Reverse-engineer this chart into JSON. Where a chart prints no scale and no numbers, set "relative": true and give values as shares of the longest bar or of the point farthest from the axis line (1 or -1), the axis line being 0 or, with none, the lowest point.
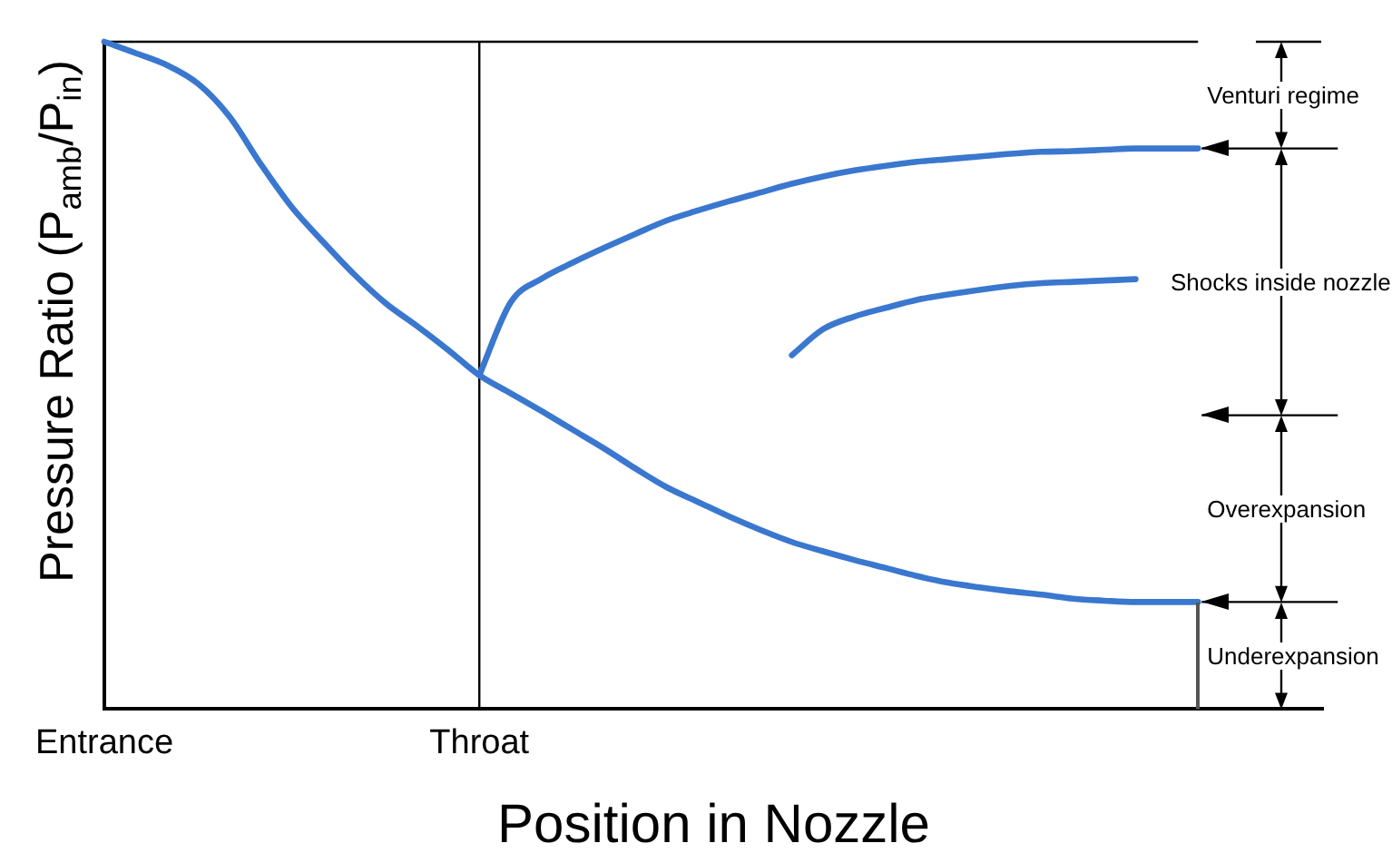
{
  "chart_data": {
    "type": "line",
    "xlabel": "Position in Nozzle",
    "ylabel": "Pressure Ratio (P$_{amb}$/P$_{in}$)",
    "relative": true,
    "tick_labels": "x",
    "categories": [
      "Entrance",
      null,
      null,
      null,
      null,
      null,
      null,
      null,
      null,
      null,
      null,
      null,
      "Throat",
      null,
      null,
      null,
      null,
      null,
      null,
      null,
      null,
      null,
      null,
      null,
      null,
      null,
      null,
      null,
      null,
      null,
      null,
      null,
      null,
      null,
      null,
      null,
      null,
      null,
      null,
      null
    ],
    "series": [
      {
        "color": "#3a77cf",
        "values": [
          1,
          0.983,
          0.965,
          0.937,
          0.888,
          0.817,
          0.752,
          0.7,
          0.651,
          0.608,
          0.574,
          0.538,
          0.5,
          0.473,
          0.446,
          0.418,
          0.39,
          0.36,
          0.332,
          0.31,
          0.288,
          0.268,
          0.25,
          0.236,
          0.223,
          0.211,
          0.199,
          0.189,
          0.182,
          0.176,
          0.171,
          0.165,
          0.162,
          0.16,
          0.16,
          0.16,
          null,
          null,
          null,
          null
        ]
      },
      {
        "color": "#3a77cf",
        "values": [
          null,
          null,
          null,
          null,
          null,
          null,
          null,
          null,
          null,
          null,
          null,
          null,
          0.5,
          0.609,
          0.645,
          0.669,
          0.691,
          0.712,
          0.732,
          0.747,
          0.761,
          0.774,
          0.787,
          0.798,
          0.807,
          0.814,
          0.82,
          0.824,
          0.828,
          0.832,
          0.835,
          0.836,
          0.838,
          0.84,
          0.84,
          0.84,
          null,
          null,
          null,
          null
        ]
      },
      {
        "color": "#3a77cf",
        "values": [
          null,
          null,
          null,
          null,
          null,
          null,
          null,
          null,
          null,
          null,
          null,
          null,
          null,
          null,
          null,
          null,
          null,
          null,
          null,
          null,
          null,
          null,
          0.53,
          0.569,
          0.588,
          0.601,
          0.613,
          0.621,
          0.628,
          0.634,
          0.638,
          0.64,
          0.642,
          0.644,
          null,
          null,
          null,
          null,
          null,
          null
        ]
      }
    ],
    "ref_lines": [
      {
        "axis": "x",
        "value": "Throat"
      },
      {
        "axis": "y",
        "value": 0.84
      },
      {
        "axis": "y",
        "value": 0.44
      },
      {
        "axis": "y",
        "value": 0.16
      }
    ],
    "annotations": [
      "Venturi regime",
      "Shocks inside nozzle",
      "Overexpansion",
      "Underexpansion"
    ]
  }
}
